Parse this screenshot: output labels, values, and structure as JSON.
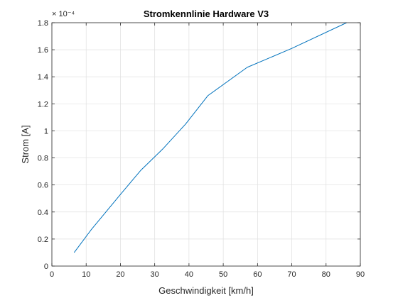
{
  "chart_data": {
    "type": "line",
    "title": "Stromkennlinie Hardware V3",
    "xlabel": "Geschwindigkeit [km/h]",
    "ylabel": "Strom [A]",
    "xlim": [
      0,
      90
    ],
    "ylim": [
      0,
      1.8
    ],
    "y_multiplier": "× 10⁻⁴",
    "x_ticks": [
      "0",
      "10",
      "20",
      "30",
      "40",
      "50",
      "60",
      "70",
      "80",
      "90"
    ],
    "x_tick_values": [
      0,
      10,
      20,
      30,
      40,
      50,
      60,
      70,
      80,
      90
    ],
    "y_ticks": [
      "0",
      "0.2",
      "0.4",
      "0.6",
      "0.8",
      "1",
      "1.2",
      "1.4",
      "1.6",
      "1.8"
    ],
    "y_tick_values": [
      0,
      0.2,
      0.4,
      0.6,
      0.8,
      1.0,
      1.2,
      1.4,
      1.6,
      1.8
    ],
    "grid": true,
    "legend": "none",
    "series": [
      {
        "color": "#0072bd",
        "x": [
          6.5,
          11.5,
          20,
          26,
          32.5,
          39,
          45.5,
          57,
          70,
          86
        ],
        "y": [
          0.1,
          0.27,
          0.53,
          0.71,
          0.87,
          1.05,
          1.26,
          1.47,
          1.61,
          1.8
        ]
      }
    ]
  }
}
